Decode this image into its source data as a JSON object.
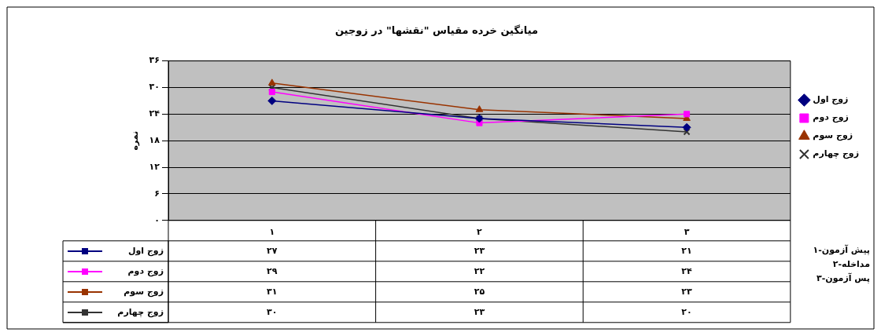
{
  "chart_data": {
    "type": "line",
    "title": "میانگین خرده مقیاس \"نقشها\" در زوجین",
    "ylabel": "نمره",
    "categories": [
      "۱",
      "۲",
      "۳"
    ],
    "series": [
      {
        "name": "زوج اول",
        "color": "#000080",
        "marker": "diamond",
        "values": [
          27,
          23,
          21
        ],
        "value_labels": [
          "۲۷",
          "۲۳",
          "۲۱"
        ]
      },
      {
        "name": "زوج دوم",
        "color": "#ff00ff",
        "marker": "square",
        "values": [
          29,
          22,
          24
        ],
        "value_labels": [
          "۲۹",
          "۲۲",
          "۲۴"
        ]
      },
      {
        "name": "زوج سوم",
        "color": "#993300",
        "marker": "triangle",
        "values": [
          31,
          25,
          23
        ],
        "value_labels": [
          "۳۱",
          "۲۵",
          "۲۳"
        ]
      },
      {
        "name": "زوج چهارم",
        "color": "#333333",
        "marker": "cross",
        "values": [
          30,
          23,
          20
        ],
        "value_labels": [
          "۳۰",
          "۲۳",
          "۲۰"
        ]
      }
    ],
    "ylim": [
      0,
      36
    ],
    "yticks": [
      {
        "value": 0,
        "label": "۰"
      },
      {
        "value": 6,
        "label": "۶"
      },
      {
        "value": 12,
        "label": "۱۲"
      },
      {
        "value": 18,
        "label": "۱۸"
      },
      {
        "value": 24,
        "label": "۲۴"
      },
      {
        "value": 30,
        "label": "۳۰"
      },
      {
        "value": 36,
        "label": "۳۶"
      }
    ],
    "grid": "y",
    "legend": "right",
    "line_style": "solid",
    "annotations": [
      "پیش آزمون-۱",
      "مداخله-۲",
      "پس آزمون-۳"
    ]
  }
}
